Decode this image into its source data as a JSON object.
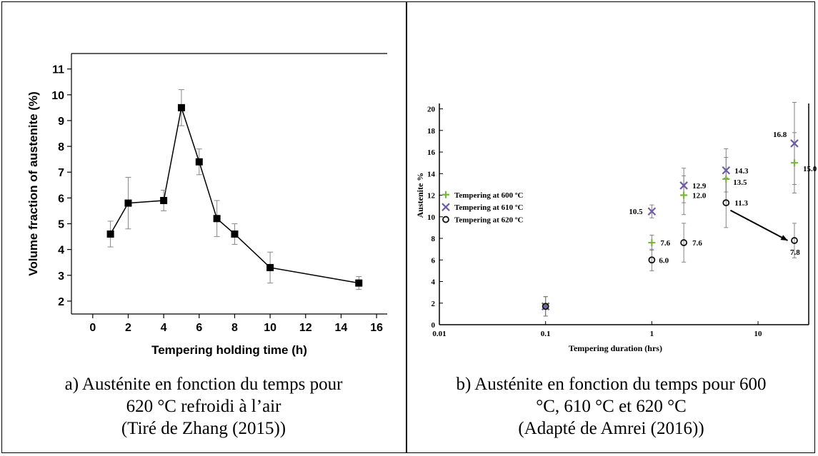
{
  "panel_a": {
    "caption": [
      "a) Austénite en fonction du temps pour",
      "620 °C refroidi à l’air",
      "(Tiré de Zhang (2015))"
    ]
  },
  "panel_b": {
    "caption": [
      "b) Austénite en fonction du temps pour 600",
      "°C, 610 °C et 620 °C",
      "(Adapté de Amrei (2016))"
    ]
  },
  "colors": {
    "green": "#7cb342",
    "purple": "#6f5ba7",
    "black": "#111111"
  },
  "chart_data": [
    {
      "type": "line",
      "xlabel": "Tempering holding time (h)",
      "ylabel": "Volume fraction of austenite (%)",
      "xlim": [
        -1.2,
        16.6
      ],
      "ylim": [
        1.5,
        11.6
      ],
      "xticks": [
        0,
        2,
        4,
        6,
        8,
        10,
        12,
        14,
        16
      ],
      "yticks": [
        2,
        3,
        4,
        5,
        6,
        7,
        8,
        9,
        10,
        11
      ],
      "marker": "filled-square",
      "series": [
        {
          "x": [
            1,
            2,
            4,
            5,
            6,
            7,
            8,
            10,
            15
          ],
          "values": [
            4.6,
            5.8,
            5.9,
            9.5,
            7.4,
            5.2,
            4.6,
            3.3,
            2.7
          ],
          "error": [
            0.5,
            1.0,
            0.4,
            0.7,
            0.5,
            0.7,
            0.4,
            0.6,
            0.25
          ]
        }
      ]
    },
    {
      "type": "scatter",
      "xscale": "log",
      "xlabel": "Tempering duration (hrs)",
      "ylabel": "Austenite %",
      "xlim": [
        0.01,
        30
      ],
      "ylim": [
        0,
        20.5
      ],
      "xticks": [
        0.01,
        0.1,
        1,
        10
      ],
      "xtick_labels": [
        "0.01",
        "0.1",
        "1",
        "10"
      ],
      "yticks": [
        0,
        2,
        4,
        6,
        8,
        10,
        12,
        14,
        16,
        18,
        20
      ],
      "legend_position": "left",
      "series": [
        {
          "name": "Tempering at 600 ºC",
          "marker": "plus",
          "color": "#7cb342",
          "x": [
            0.1,
            1,
            2,
            5,
            22
          ],
          "values": [
            1.7,
            7.6,
            12.0,
            13.5,
            15.0
          ],
          "error": [
            0.9,
            0.7,
            1.8,
            2.0,
            2.8
          ],
          "labels": [
            "",
            "7.6",
            "12.0",
            "13.5",
            "15.0"
          ]
        },
        {
          "name": "Tempering at 610 ºC",
          "marker": "x",
          "color": "#6f5ba7",
          "x": [
            0.1,
            1,
            2,
            5,
            22
          ],
          "values": [
            1.7,
            10.5,
            12.9,
            14.3,
            16.8
          ],
          "error": [
            0.9,
            0.6,
            1.6,
            2.0,
            3.8
          ],
          "labels": [
            "",
            "10.5",
            "12.9",
            "14.3",
            "16.8"
          ]
        },
        {
          "name": "Tempering at 620 ºC",
          "marker": "circle",
          "color": "#111111",
          "x": [
            0.1,
            1,
            2,
            5,
            22
          ],
          "values": [
            1.7,
            6.0,
            7.6,
            11.3,
            7.8
          ],
          "error": [
            0.9,
            1.0,
            1.8,
            2.3,
            1.6
          ],
          "labels": [
            "",
            "6.0",
            "7.6",
            "11.3",
            "7.8"
          ]
        }
      ],
      "annotation": {
        "type": "arrow",
        "from": [
          5.5,
          10.6
        ],
        "to": [
          19,
          7.8
        ]
      }
    }
  ]
}
